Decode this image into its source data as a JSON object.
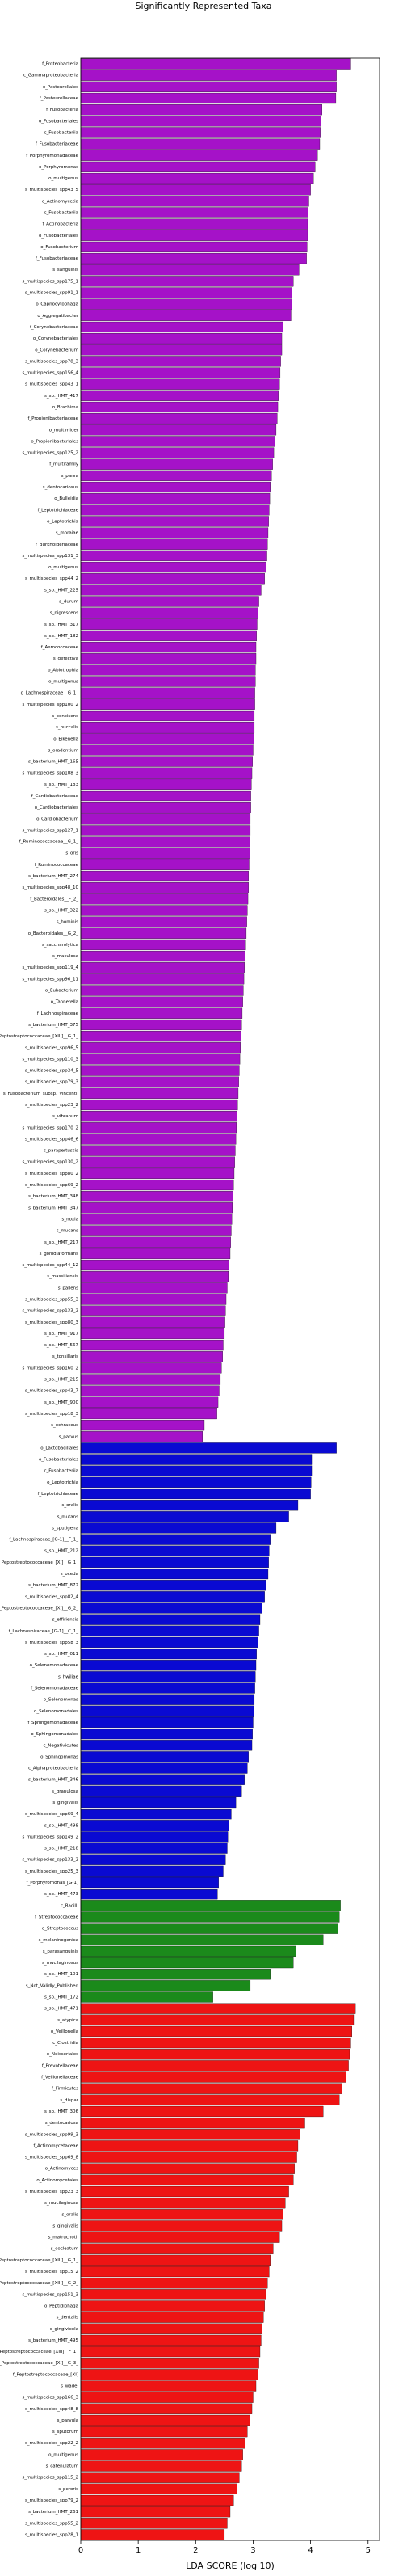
{
  "chart_data": {
    "type": "hbar",
    "title": "Significantly Represented Taxa",
    "x_label": "LDA SCORE (log 10)",
    "xlim": [
      0,
      5.2
    ],
    "xticks": [
      0,
      1,
      2,
      3,
      4,
      5
    ],
    "groups": [
      {
        "color": "#a512c8",
        "categories": [
          "f_Proteobacteria",
          "c_Gammaproteobacteria",
          "o_Pasteurellales",
          "f_Pasteurellaceae",
          "f_Fusobacteria",
          "o_Fusobacteriales",
          "c_Fusobacteriia",
          "f_Fusobacteriaceae",
          "f_Porphyromonadaceae",
          "o_Porphyromonas",
          "o_multigenus",
          "s_multispecies_spp43_5",
          "c_Actinomycetia",
          "c_Fusobacteriia",
          "f_Actinobacteria",
          "o_Fusobacteriales",
          "o_Fusobacterium",
          "f_Fusobacteriaceae",
          "s_sanguinis",
          "s_multispecies_spp175_1",
          "s_multispecies_spp91_1",
          "o_Capnocytophaga",
          "o_Aggregatibacter",
          "f_Corynebacteriaceae",
          "o_Corynebacteriales",
          "o_Corynebacterium",
          "s_multispecies_spp78_3",
          "s_multispecies_spp156_4",
          "s_multispecies_spp43_1",
          "s_sp._HMT_417",
          "o_Brachima",
          "f_Propionibacteriaceae",
          "o_multimider",
          "o_Propionibacteriales",
          "s_multispecies_spp125_2",
          "f_multifamily",
          "s_parva",
          "s_dentocariosus",
          "o_Bulleidia",
          "f_Leptotrichiaceae",
          "o_Leptotrichia",
          "s_moraiae",
          "f_Burkholderiaceae",
          "s_multispecies_spp131_3",
          "o_multigenus",
          "s_multispecies_spp44_2",
          "s_sp._HMT_225",
          "s_durum",
          "s_nigrescens",
          "s_sp._HMT_317",
          "s_sp._HMT_182",
          "f_Aerococcaceae",
          "s_defectiva",
          "o_Abiotrophia",
          "o_multigenus",
          "o_Lachnospiraceae__G_1_",
          "s_multispecies_spp100_2",
          "s_concisens",
          "s_buccalis",
          "o_Eikenella",
          "s_oradentium",
          "s_bacterium_HMT_165",
          "s_multispecies_spp108_3",
          "s_sp._HMT_183",
          "f_Cardiobacteriaceae",
          "o_Cardiobacteriales",
          "o_Cardiobacterium",
          "s_multispecies_spp127_1",
          "f_Ruminococcaceae__G_1_",
          "s_oris",
          "f_Ruminococcaceae",
          "s_bacterium_HMT_274",
          "s_multispecies_spp48_10",
          "f_Bacteroidales__F_2_",
          "s_sp._HMT_322",
          "s_hominis",
          "o_Bacteroidales__G_2_",
          "s_saccharolytica",
          "s_maculosa",
          "s_multispecies_spp119_4",
          "s_multispecies_spp96_11",
          "o_Eubacterium",
          "o_Tannerella",
          "f_Lachnospiraceae",
          "s_bacterium_HMT_375",
          "f_Peptostreptococcaceae_[XIII]__G_1_",
          "s_multispecies_spp96_5",
          "s_multispecies_spp110_3",
          "s_multispecies_spp24_5",
          "s_multispecies_spp79_3",
          "s_Fusobacterium_subsp._vincentii",
          "s_multispecies_spp23_2",
          "s_vibranum",
          "s_multispecies_spp170_2",
          "s_multispecies_spp46_6",
          "s_parapertussis",
          "s_multispecies_spp130_2",
          "s_multispecies_spp80_2",
          "s_multispecies_spp69_2",
          "s_bacterium_HMT_348",
          "s_bacterium_HMT_347",
          "s_noxia",
          "s_mucans",
          "s_sp._HMT_217",
          "s_gonidiaformans",
          "s_multispecies_spp44_12",
          "s_massiliensis",
          "s_pallens",
          "s_multispecies_spp55_3",
          "s_multispecies_spp133_2",
          "s_multispecies_spp80_3",
          "s_sp._HMT_917",
          "s_sp._HMT_567",
          "s_tonsillaris",
          "s_multispecies_spp160_2",
          "s_sp._HMT_215",
          "s_multispecies_spp43_7",
          "s_sp._HMT_900",
          "s_multispecies_spp18_3",
          "s_ochraceus",
          "s_parvus"
        ],
        "values": [
          4.7,
          4.45,
          4.45,
          4.44,
          4.2,
          4.18,
          4.17,
          4.16,
          4.12,
          4.08,
          4.05,
          4.0,
          3.97,
          3.96,
          3.95,
          3.95,
          3.94,
          3.93,
          3.8,
          3.7,
          3.68,
          3.67,
          3.66,
          3.52,
          3.5,
          3.5,
          3.48,
          3.47,
          3.46,
          3.44,
          3.43,
          3.42,
          3.4,
          3.38,
          3.36,
          3.34,
          3.32,
          3.3,
          3.29,
          3.28,
          3.27,
          3.26,
          3.25,
          3.24,
          3.23,
          3.2,
          3.14,
          3.1,
          3.08,
          3.07,
          3.06,
          3.05,
          3.05,
          3.04,
          3.04,
          3.03,
          3.03,
          3.02,
          3.02,
          3.01,
          3.0,
          2.99,
          2.98,
          2.97,
          2.96,
          2.96,
          2.95,
          2.95,
          2.94,
          2.94,
          2.93,
          2.92,
          2.92,
          2.91,
          2.9,
          2.89,
          2.88,
          2.87,
          2.86,
          2.85,
          2.84,
          2.83,
          2.82,
          2.81,
          2.8,
          2.79,
          2.78,
          2.77,
          2.76,
          2.75,
          2.74,
          2.73,
          2.72,
          2.71,
          2.7,
          2.69,
          2.68,
          2.67,
          2.66,
          2.65,
          2.64,
          2.63,
          2.62,
          2.61,
          2.6,
          2.58,
          2.57,
          2.55,
          2.53,
          2.52,
          2.51,
          2.5,
          2.48,
          2.47,
          2.45,
          2.43,
          2.41,
          2.39,
          2.37,
          2.15,
          2.12
        ]
      },
      {
        "color": "#0a0ad2",
        "categories": [
          "o_Lactobacillales",
          "o_Fusobacteriales",
          "c_Fusobacteriia",
          "o_Leptotrichia",
          "f_Leptotrichiaceae",
          "s_oralis",
          "s_mutans",
          "s_sputigena",
          "f_Lachnospiraceae_[G-1]__F_1_",
          "s_sp._HMT_212",
          "f_Peptostreptococcaceae_[XI]__G_1_",
          "s_oceda",
          "s_bacterium_HMT_872",
          "s_multispecies_spp82_4",
          "f_Peptostreptococcaceae_[XI]__G_2_",
          "s_effiriensis",
          "f_Lachnospiraceae_[G-1]__C_1_",
          "s_multispecies_spp58_3",
          "s_sp._HMT_011",
          "o_Selenomonadaceae",
          "s_hwiliae",
          "f_Selenomonadaceae",
          "o_Selenomonas",
          "o_Selenomonadales",
          "f_Sphingomonadaceae",
          "o_Sphingomonadales",
          "c_Negativicutes",
          "o_Sphingomonas",
          "c_Alphaproteobacteria",
          "s_bacterium_HMT_346",
          "s_granulosa",
          "s_gingivalis",
          "s_multispecies_spp69_4",
          "s_sp._HMT_498",
          "s_multispecies_spp149_2",
          "s_sp._HMT_218",
          "s_multispecies_spp133_2",
          "s_multispecies_spp25_3",
          "f_Porphyromonas_[G-1]",
          "s_sp._HMT_473"
        ],
        "values": [
          4.45,
          4.02,
          4.02,
          4.01,
          4.0,
          3.78,
          3.62,
          3.4,
          3.3,
          3.28,
          3.27,
          3.26,
          3.22,
          3.2,
          3.15,
          3.12,
          3.1,
          3.08,
          3.06,
          3.05,
          3.04,
          3.03,
          3.02,
          3.01,
          3.0,
          2.99,
          2.98,
          2.92,
          2.9,
          2.85,
          2.8,
          2.7,
          2.62,
          2.58,
          2.56,
          2.55,
          2.52,
          2.48,
          2.4,
          2.38
        ]
      },
      {
        "color": "#1b8a1b",
        "categories": [
          "c_Bacilli",
          "f_Streptococcaceae",
          "o_Streptococcus",
          "s_melaninogenica",
          "s_parasanguinis",
          "s_mucilaginosus",
          "s_sp._HMT_101",
          "s_Not_Validly_Published",
          "s_sp._HMT_172"
        ],
        "values": [
          4.52,
          4.5,
          4.48,
          4.22,
          3.75,
          3.7,
          3.3,
          2.95,
          2.3
        ]
      },
      {
        "color": "#ee1414",
        "categories": [
          "s_sp._HMT_471",
          "s_atypica",
          "o_Veillonella",
          "c_Clostridia",
          "o_Neisseriales",
          "f_Prevotellaceae",
          "f_Veillonellaceae",
          "f_Firmicutes",
          "s_dispar",
          "s_sp._HMT_306",
          "s_dentocariosa",
          "s_multispecies_spp99_3",
          "f_Actinomycetaceae",
          "s_multispecies_spp69_8",
          "o_Actinomyces",
          "o_Actinomycetales",
          "s_multispecies_spp23_3",
          "s_mucilaginosa",
          "s_oralis",
          "s_gingivalis",
          "s_matruchotii",
          "s_cocleatum",
          "f_Peptostreptococcaceae_[XIII]__G_1_",
          "s_multispecies_spp15_2",
          "f_Peptostreptococcaceae_[XIII]__G_2_",
          "s_multispecies_spp151_3",
          "o_Peptidiphaga",
          "s_dentalis",
          "s_gingivicola",
          "s_bacterium_HMT_495",
          "f_Peptostreptococcaceae_[XIII]__F_1_",
          "f_Peptostreptococcaceae_[XI]__G_3_",
          "f_Peptostreptococcaceae_[XI]",
          "s_wadei",
          "s_multispecies_spp166_3",
          "s_multispecies_spp48_8",
          "s_parvula",
          "s_sputorum",
          "s_multispecies_spp22_2",
          "o_multigenus",
          "s_catenulatum",
          "s_multispecies_spp115_2",
          "s_peroris",
          "s_multispecies_spp79_2",
          "s_bacterium_HMT_261",
          "s_multispecies_spp55_2",
          "s_multispecies_spp28_1"
        ],
        "values": [
          4.78,
          4.75,
          4.72,
          4.7,
          4.68,
          4.66,
          4.62,
          4.55,
          4.5,
          4.22,
          3.9,
          3.82,
          3.78,
          3.76,
          3.72,
          3.7,
          3.62,
          3.56,
          3.52,
          3.5,
          3.46,
          3.35,
          3.3,
          3.28,
          3.25,
          3.22,
          3.2,
          3.18,
          3.16,
          3.14,
          3.12,
          3.1,
          3.08,
          3.05,
          3.0,
          2.98,
          2.94,
          2.9,
          2.86,
          2.82,
          2.8,
          2.76,
          2.72,
          2.66,
          2.6,
          2.55,
          2.5
        ]
      }
    ]
  }
}
